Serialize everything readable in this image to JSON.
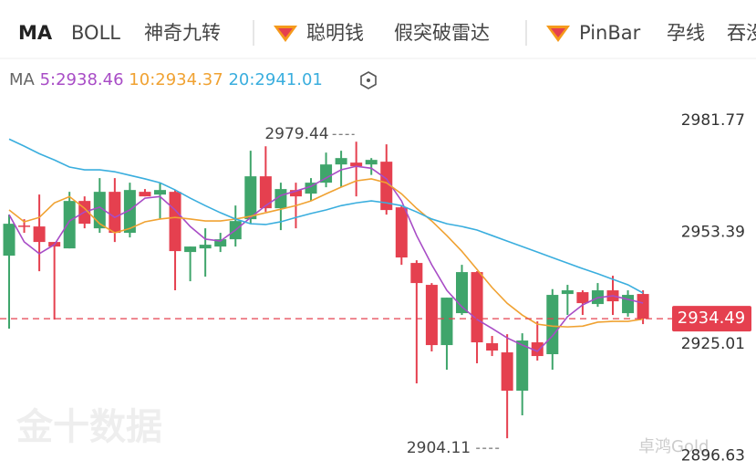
{
  "tabs": [
    "MA",
    "BOLL",
    "神奇九转",
    "聪明钱",
    "假突破雷达",
    "PinBar",
    "孕线",
    "吞没"
  ],
  "watermarks": [
    "金十数据",
    "卓鸿Gold"
  ],
  "chart_data": {
    "type": "candlestick",
    "legend_title": "MA",
    "up_color": "#3fa56b",
    "down_color": "#e5404f",
    "open": [
      2950.49,
      2958.14,
      2957.91,
      2953.97,
      2952.34,
      2964.39,
      2957.44,
      2966.71,
      2956.29,
      2966.71,
      2966.01,
      2966.71,
      2951.42,
      2952.34,
      2952.81,
      2954.66,
      2959.76,
      2970.65,
      2962.54,
      2967.17,
      2966.25,
      2969.03,
      2973.66,
      2974.13,
      2973.66,
      2974.36,
      2962.77,
      2948.64,
      2943.08,
      2927.78,
      2935.89,
      2946.32,
      2928.25,
      2925.93,
      2916.2,
      2928.48,
      2925.47,
      2940.76,
      2941.22,
      2938.21,
      2941.69,
      2935.89,
      2940.76
    ],
    "high": [
      2960.92,
      2959.76,
      2966.01,
      2953.97,
      2966.71,
      2965.55,
      2970.19,
      2970.19,
      2969.03,
      2967.41,
      2969.03,
      2967.17,
      2952.81,
      2957.44,
      2956.29,
      2963.23,
      2977.14,
      2978.29,
      2969.03,
      2969.03,
      2970.19,
      2976.67,
      2977.14,
      2979.44,
      2975.28,
      2978.76,
      2963.23,
      2949.33,
      2943.54,
      2939.83,
      2948.17,
      2946.55,
      2930.1,
      2930.56,
      2930.79,
      2933.81,
      2942.0,
      2943.08,
      2941.69,
      2943.54,
      2945.39,
      2941.69,
      2941.69
    ],
    "low": [
      2931.95,
      2956.29,
      2946.55,
      2934.27,
      2952.34,
      2957.44,
      2956.29,
      2953.97,
      2955.13,
      2965.55,
      2959.76,
      2941.69,
      2944.0,
      2945.16,
      2951.42,
      2952.81,
      2958.6,
      2961.61,
      2956.98,
      2957.44,
      2964.39,
      2967.87,
      2967.87,
      2965.55,
      2971.0,
      2960.92,
      2948.17,
      2918.06,
      2926.16,
      2921.53,
      2935.43,
      2923.15,
      2925.0,
      2904.11,
      2909.94,
      2923.85,
      2921.53,
      2935.43,
      2935.43,
      2937.5,
      2935.43,
      2935.0,
      2933.11
    ],
    "close": [
      2958.6,
      2957.91,
      2953.97,
      2952.81,
      2964.39,
      2958.6,
      2966.71,
      2956.29,
      2967.17,
      2965.55,
      2967.17,
      2951.65,
      2952.81,
      2953.27,
      2954.66,
      2959.29,
      2970.65,
      2962.54,
      2967.41,
      2965.55,
      2969.03,
      2973.66,
      2975.28,
      2973.2,
      2974.82,
      2962.08,
      2950.03,
      2943.54,
      2927.78,
      2939.83,
      2946.32,
      2928.48,
      2926.39,
      2916.2,
      2928.94,
      2925.0,
      2940.53,
      2941.69,
      2938.44,
      2941.69,
      2938.9,
      2940.53,
      2934.49
    ],
    "series": [
      {
        "name": "5",
        "color": "#a84cc6",
        "values": [
          2960.9,
          2954.0,
          2951.0,
          2953.3,
          2959.3,
          2961.6,
          2962.8,
          2960.2,
          2962.1,
          2965.1,
          2965.5,
          2962.1,
          2957.9,
          2954.7,
          2954.2,
          2957.0,
          2960.2,
          2963.2,
          2965.8,
          2966.9,
          2968.1,
          2970.2,
          2972.3,
          2973.2,
          2972.7,
          2970.0,
          2964.4,
          2955.6,
          2948.2,
          2941.7,
          2937.5,
          2934.3,
          2932.0,
          2929.6,
          2927.8,
          2926.2,
          2930.1,
          2935.0,
          2938.0,
          2939.8,
          2940.3,
          2939.4,
          2938.46
        ]
      },
      {
        "name": "10",
        "color": "#f0a232",
        "values": [
          2962.1,
          2959.1,
          2960.2,
          2963.9,
          2965.5,
          2962.5,
          2958.6,
          2956.3,
          2957.4,
          2959.1,
          2959.8,
          2960.2,
          2959.8,
          2959.3,
          2959.3,
          2959.8,
          2960.5,
          2961.4,
          2962.3,
          2963.2,
          2964.4,
          2966.2,
          2967.9,
          2969.5,
          2970.0,
          2969.0,
          2966.2,
          2962.5,
          2959.3,
          2955.6,
          2951.6,
          2947.0,
          2942.4,
          2938.4,
          2935.4,
          2933.1,
          2932.6,
          2932.4,
          2932.6,
          2933.6,
          2933.8,
          2933.8,
          2934.37
        ]
      },
      {
        "name": "20",
        "color": "#3aaede",
        "values": [
          2980.1,
          2978.3,
          2976.4,
          2974.8,
          2973.0,
          2972.3,
          2972.3,
          2971.8,
          2970.9,
          2970.0,
          2969.0,
          2967.2,
          2965.1,
          2963.2,
          2961.4,
          2959.8,
          2958.6,
          2958.4,
          2959.1,
          2960.2,
          2961.2,
          2962.1,
          2963.2,
          2963.9,
          2964.4,
          2963.9,
          2963.2,
          2961.6,
          2959.8,
          2958.6,
          2957.9,
          2957.0,
          2955.6,
          2954.2,
          2952.8,
          2951.4,
          2950.0,
          2948.6,
          2947.2,
          2945.9,
          2944.5,
          2943.1,
          2941.01
        ]
      }
    ],
    "ylim": [
      2895.8,
      2999.2
    ],
    "yticks": [
      2981.77,
      2953.39,
      2925.01,
      2896.63
    ]
  }
}
